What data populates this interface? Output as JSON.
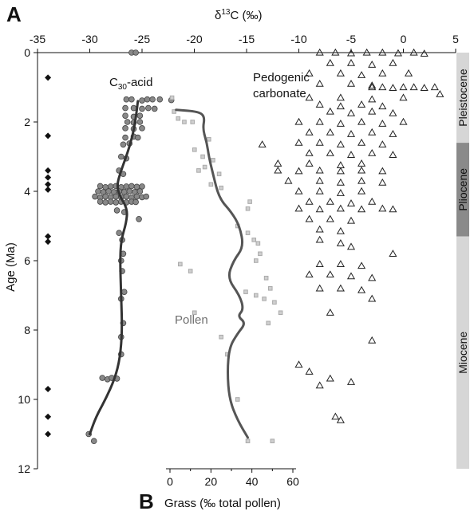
{
  "figure": {
    "panel_a": "A",
    "panel_b": "B"
  },
  "chart_data": {
    "type": "scatter",
    "title": "",
    "top_axis": {
      "label": "δ13C (‰)",
      "label_main": "δ",
      "label_sup": "13",
      "label_rest": "C (‰)",
      "range": [
        -35,
        5
      ],
      "ticks": [
        -35,
        -30,
        -25,
        -20,
        -15,
        -10,
        -5,
        0,
        5
      ]
    },
    "bottom_axis": {
      "label": "Grass (‰ total pollen)",
      "range": [
        0,
        60
      ],
      "ticks": [
        0,
        20,
        40,
        60
      ]
    },
    "y_axis": {
      "label": "Age (Ma)",
      "range": [
        0,
        12
      ],
      "inverted": true,
      "ticks": [
        0,
        2,
        4,
        6,
        8,
        10,
        12
      ]
    },
    "epochs": [
      {
        "name": "Pleistocene",
        "start": 0,
        "end": 2.6,
        "color": "#d6d6d6"
      },
      {
        "name": "Pliocene",
        "start": 2.6,
        "end": 5.3,
        "color": "#8a8a8a"
      },
      {
        "name": "Miocene",
        "start": 5.3,
        "end": 12,
        "color": "#d6d6d6"
      }
    ],
    "series_labels": {
      "c30_main": "C",
      "c30_sub": "30",
      "c30_rest": "-acid",
      "pollen": "Pollen",
      "pedogenic_1": "Pedogenic",
      "pedogenic_2": "carbonate"
    },
    "series": [
      {
        "name": "C30-acid",
        "axis": "top",
        "marker": "circle",
        "color": "#888888",
        "points": [
          [
            -26.0,
            0.0
          ],
          [
            -25.6,
            0.0
          ],
          [
            -26.5,
            1.35
          ],
          [
            -26.0,
            1.35
          ],
          [
            -25.0,
            1.38
          ],
          [
            -24.5,
            1.35
          ],
          [
            -24.0,
            1.35
          ],
          [
            -23.3,
            1.35
          ],
          [
            -22.2,
            1.37
          ],
          [
            -26.6,
            1.6
          ],
          [
            -25.8,
            1.6
          ],
          [
            -25.0,
            1.62
          ],
          [
            -24.4,
            1.6
          ],
          [
            -23.8,
            1.62
          ],
          [
            -26.6,
            1.82
          ],
          [
            -25.8,
            1.85
          ],
          [
            -25.2,
            1.82
          ],
          [
            -26.4,
            2.0
          ],
          [
            -25.8,
            2.02
          ],
          [
            -25.2,
            2.0
          ],
          [
            -26.6,
            2.18
          ],
          [
            -25.8,
            2.2
          ],
          [
            -25.0,
            2.18
          ],
          [
            -26.6,
            2.45
          ],
          [
            -25.8,
            2.42
          ],
          [
            -25.4,
            2.45
          ],
          [
            -26.8,
            2.65
          ],
          [
            -26.2,
            2.62
          ],
          [
            -27.0,
            3.0
          ],
          [
            -26.5,
            3.05
          ],
          [
            -27.2,
            3.4
          ],
          [
            -26.8,
            3.5
          ],
          [
            -29.0,
            3.85
          ],
          [
            -28.5,
            3.88
          ],
          [
            -28.0,
            3.86
          ],
          [
            -27.5,
            3.85
          ],
          [
            -27.0,
            3.88
          ],
          [
            -26.5,
            3.86
          ],
          [
            -26.0,
            3.85
          ],
          [
            -25.5,
            3.87
          ],
          [
            -25.0,
            3.86
          ],
          [
            -29.2,
            4.0
          ],
          [
            -28.7,
            4.02
          ],
          [
            -28.2,
            4.0
          ],
          [
            -27.7,
            4.02
          ],
          [
            -27.2,
            4.0
          ],
          [
            -26.7,
            4.02
          ],
          [
            -26.2,
            4.0
          ],
          [
            -25.7,
            4.02
          ],
          [
            -25.2,
            4.0
          ],
          [
            -29.5,
            4.15
          ],
          [
            -29.0,
            4.18
          ],
          [
            -28.5,
            4.15
          ],
          [
            -28.0,
            4.17
          ],
          [
            -27.5,
            4.15
          ],
          [
            -27.0,
            4.17
          ],
          [
            -26.5,
            4.15
          ],
          [
            -26.0,
            4.18
          ],
          [
            -25.5,
            4.15
          ],
          [
            -25.0,
            4.17
          ],
          [
            -24.6,
            4.15
          ],
          [
            -29.0,
            4.3
          ],
          [
            -28.5,
            4.32
          ],
          [
            -28.0,
            4.3
          ],
          [
            -27.5,
            4.32
          ],
          [
            -27.0,
            4.3
          ],
          [
            -26.5,
            4.32
          ],
          [
            -26.0,
            4.3
          ],
          [
            -25.6,
            4.31
          ],
          [
            -27.4,
            4.55
          ],
          [
            -26.7,
            4.6
          ],
          [
            -25.3,
            4.8
          ],
          [
            -27.2,
            5.2
          ],
          [
            -26.9,
            5.4
          ],
          [
            -26.8,
            5.8
          ],
          [
            -27.0,
            6.0
          ],
          [
            -26.9,
            6.3
          ],
          [
            -26.7,
            6.9
          ],
          [
            -27.0,
            7.1
          ],
          [
            -26.8,
            7.8
          ],
          [
            -27.0,
            8.2
          ],
          [
            -27.0,
            8.7
          ],
          [
            -28.8,
            9.38
          ],
          [
            -28.3,
            9.42
          ],
          [
            -27.9,
            9.38
          ],
          [
            -27.4,
            9.4
          ],
          [
            -30.1,
            11.0
          ],
          [
            -29.6,
            11.2
          ]
        ]
      },
      {
        "name": "C30-acid trend",
        "axis": "top",
        "line": true,
        "color": "#333333",
        "points": [
          [
            -25.4,
            1.4
          ],
          [
            -25.6,
            1.9
          ],
          [
            -25.9,
            2.4
          ],
          [
            -26.4,
            2.9
          ],
          [
            -27.0,
            3.4
          ],
          [
            -27.4,
            3.8
          ],
          [
            -27.2,
            4.1
          ],
          [
            -26.4,
            4.5
          ],
          [
            -26.5,
            4.9
          ],
          [
            -27.0,
            5.4
          ],
          [
            -27.1,
            6.0
          ],
          [
            -27.0,
            7.0
          ],
          [
            -26.9,
            8.0
          ],
          [
            -27.1,
            8.8
          ],
          [
            -27.6,
            9.4
          ],
          [
            -28.5,
            10.0
          ],
          [
            -29.4,
            10.5
          ],
          [
            -30.0,
            11.0
          ]
        ]
      },
      {
        "name": "Pollen",
        "axis": "bottom",
        "marker": "square",
        "color": "#aaaaaa",
        "points": [
          [
            2,
            1.7
          ],
          [
            4,
            1.9
          ],
          [
            7,
            2.0
          ],
          [
            11,
            2.0
          ],
          [
            19,
            2.5
          ],
          [
            12,
            2.8
          ],
          [
            16,
            3.0
          ],
          [
            21,
            3.1
          ],
          [
            17,
            3.3
          ],
          [
            14,
            3.4
          ],
          [
            24,
            3.5
          ],
          [
            20,
            3.8
          ],
          [
            25,
            3.9
          ],
          [
            39,
            4.3
          ],
          [
            38,
            4.5
          ],
          [
            33,
            5.0
          ],
          [
            38,
            5.2
          ],
          [
            41,
            5.4
          ],
          [
            43,
            5.5
          ],
          [
            44,
            5.8
          ],
          [
            42,
            6.0
          ],
          [
            47,
            6.5
          ],
          [
            49,
            6.8
          ],
          [
            37,
            6.9
          ],
          [
            42,
            7.0
          ],
          [
            46,
            7.1
          ],
          [
            51,
            7.2
          ],
          [
            54,
            7.5
          ],
          [
            48,
            7.8
          ],
          [
            25,
            8.2
          ],
          [
            28,
            8.7
          ],
          [
            33,
            10.0
          ],
          [
            38,
            11.2
          ],
          [
            50,
            11.2
          ],
          [
            5,
            6.1
          ],
          [
            10,
            6.3
          ],
          [
            1,
            1.3
          ],
          [
            12,
            7.5
          ]
        ]
      },
      {
        "name": "Pollen trend",
        "axis": "bottom",
        "line": true,
        "color": "#555555",
        "points": [
          [
            3,
            1.65
          ],
          [
            14,
            1.7
          ],
          [
            17,
            1.85
          ],
          [
            16,
            2.2
          ],
          [
            18,
            2.6
          ],
          [
            19,
            3.0
          ],
          [
            21,
            3.5
          ],
          [
            24,
            4.2
          ],
          [
            30,
            4.6
          ],
          [
            34,
            5.0
          ],
          [
            36,
            5.6
          ],
          [
            31,
            6.0
          ],
          [
            28,
            6.5
          ],
          [
            34,
            7.0
          ],
          [
            36,
            7.4
          ],
          [
            33,
            7.6
          ],
          [
            37,
            7.8
          ],
          [
            33,
            8.1
          ],
          [
            29,
            8.5
          ],
          [
            28,
            9.2
          ],
          [
            29,
            10.0
          ],
          [
            33,
            10.6
          ],
          [
            38,
            11.1
          ]
        ]
      },
      {
        "name": "Pedogenic carbonate",
        "axis": "top",
        "marker": "triangle",
        "color": "#222222",
        "points": [
          [
            -8,
            0.0
          ],
          [
            -6.5,
            0.0
          ],
          [
            -5,
            0.02
          ],
          [
            -3.5,
            0.0
          ],
          [
            -2,
            0.0
          ],
          [
            -0.5,
            0.02
          ],
          [
            1,
            0.0
          ],
          [
            2,
            0.03
          ],
          [
            -7,
            0.3
          ],
          [
            -5,
            0.3
          ],
          [
            -3,
            0.35
          ],
          [
            -1,
            0.3
          ],
          [
            -9,
            0.6
          ],
          [
            -6,
            0.6
          ],
          [
            -4,
            0.65
          ],
          [
            -2,
            0.6
          ],
          [
            0.5,
            0.6
          ],
          [
            -8,
            0.9
          ],
          [
            -5,
            0.9
          ],
          [
            -3,
            0.95
          ],
          [
            -3,
            1.0
          ],
          [
            -2,
            1.0
          ],
          [
            -1,
            1.02
          ],
          [
            0,
            1.0
          ],
          [
            1,
            1.0
          ],
          [
            2,
            1.02
          ],
          [
            3,
            1.0
          ],
          [
            -9,
            1.3
          ],
          [
            -6,
            1.3
          ],
          [
            -3,
            1.35
          ],
          [
            0,
            1.3
          ],
          [
            3.5,
            1.2
          ],
          [
            -8,
            1.5
          ],
          [
            -6,
            1.55
          ],
          [
            -4,
            1.5
          ],
          [
            -2,
            1.55
          ],
          [
            -7,
            1.7
          ],
          [
            -5,
            1.75
          ],
          [
            -3,
            1.7
          ],
          [
            -1,
            1.75
          ],
          [
            -10,
            2.0
          ],
          [
            -8,
            2.0
          ],
          [
            -6,
            2.05
          ],
          [
            -4,
            2.0
          ],
          [
            -2,
            2.05
          ],
          [
            0,
            2.0
          ],
          [
            -9,
            2.3
          ],
          [
            -7,
            2.3
          ],
          [
            -5,
            2.35
          ],
          [
            -3,
            2.3
          ],
          [
            -1,
            2.35
          ],
          [
            -10,
            2.6
          ],
          [
            -8,
            2.6
          ],
          [
            -6,
            2.65
          ],
          [
            -4,
            2.6
          ],
          [
            -2,
            2.65
          ],
          [
            -13.5,
            2.65
          ],
          [
            -9,
            2.9
          ],
          [
            -7,
            2.9
          ],
          [
            -5,
            2.95
          ],
          [
            -3,
            2.9
          ],
          [
            -1,
            2.95
          ],
          [
            -12,
            3.2
          ],
          [
            -9,
            3.2
          ],
          [
            -6,
            3.25
          ],
          [
            -4,
            3.2
          ],
          [
            -12,
            3.4
          ],
          [
            -10,
            3.42
          ],
          [
            -8,
            3.4
          ],
          [
            -6,
            3.42
          ],
          [
            -4,
            3.4
          ],
          [
            -2,
            3.42
          ],
          [
            -11,
            3.7
          ],
          [
            -8,
            3.7
          ],
          [
            -6,
            3.75
          ],
          [
            -4,
            3.7
          ],
          [
            -2,
            3.75
          ],
          [
            -10,
            4.0
          ],
          [
            -8,
            4.0
          ],
          [
            -6,
            4.05
          ],
          [
            -4,
            4.0
          ],
          [
            -9,
            4.3
          ],
          [
            -7,
            4.3
          ],
          [
            -5,
            4.35
          ],
          [
            -3,
            4.3
          ],
          [
            -10,
            4.5
          ],
          [
            -8,
            4.52
          ],
          [
            -6,
            4.5
          ],
          [
            -4,
            4.52
          ],
          [
            -2,
            4.5
          ],
          [
            -1,
            4.52
          ],
          [
            -9,
            4.8
          ],
          [
            -7,
            4.8
          ],
          [
            -5,
            4.85
          ],
          [
            -8,
            5.1
          ],
          [
            -6,
            5.15
          ],
          [
            -8,
            5.4
          ],
          [
            -6,
            5.5
          ],
          [
            -5,
            5.6
          ],
          [
            -1,
            5.8
          ],
          [
            -8,
            6.1
          ],
          [
            -6,
            6.1
          ],
          [
            -4,
            6.15
          ],
          [
            -9,
            6.4
          ],
          [
            -7,
            6.4
          ],
          [
            -5,
            6.45
          ],
          [
            -3,
            6.5
          ],
          [
            -8,
            6.8
          ],
          [
            -6,
            6.8
          ],
          [
            -4,
            6.85
          ],
          [
            -3,
            7.1
          ],
          [
            -7,
            7.5
          ],
          [
            -3,
            8.3
          ],
          [
            -10,
            9.0
          ],
          [
            -9,
            9.2
          ],
          [
            -7,
            9.4
          ],
          [
            -5,
            9.5
          ],
          [
            -8,
            9.6
          ],
          [
            -6.5,
            10.5
          ],
          [
            -6,
            10.6
          ]
        ]
      }
    ],
    "extra_markers": {
      "name": "diamonds",
      "x": -34,
      "y": [
        0.72,
        2.4,
        3.4,
        3.6,
        3.8,
        3.95,
        5.3,
        5.45,
        9.7,
        10.5,
        11.0
      ]
    }
  }
}
